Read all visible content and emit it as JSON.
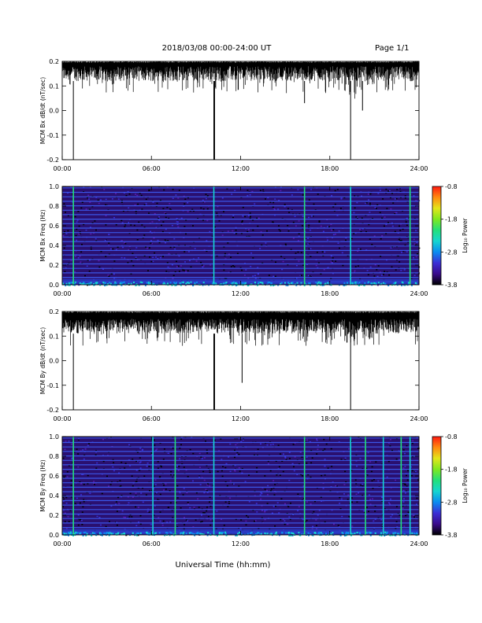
{
  "header": {
    "title": "2018/03/08  00:00-24:00 UT",
    "page": "Page 1/1"
  },
  "x_axis": {
    "title": "Universal Time (hh:mm)",
    "ticks": [
      "00:00",
      "06:00",
      "12:00",
      "18:00",
      "24:00"
    ]
  },
  "colors": {
    "colormap": [
      "#000000",
      "#3a0a8c",
      "#3b2fd6",
      "#0b8cf0",
      "#15d6d0",
      "#23e07a",
      "#7fe81f",
      "#e3e61a",
      "#ff8a10",
      "#ff1a10"
    ]
  },
  "chart_data": [
    {
      "type": "line",
      "panel": "bx-timeseries",
      "ylabel": "MCM Bx dB/dt (nT/sec)",
      "xlim": [
        0,
        24
      ],
      "ylim": [
        -0.2,
        0.2
      ],
      "yticks": [
        "-0.2",
        "-0.1",
        "0.0",
        "0.1",
        "0.2"
      ],
      "baseline_top": 0.2,
      "typical_low": 0.12,
      "spikes": [
        {
          "x": 0.75,
          "y": -0.2
        },
        {
          "x": 10.2,
          "y": -0.2
        },
        {
          "x": 10.25,
          "y": -0.2
        },
        {
          "x": 16.3,
          "y": 0.03
        },
        {
          "x": 19.4,
          "y": -0.2
        },
        {
          "x": 20.2,
          "y": 0.0
        }
      ]
    },
    {
      "type": "heatmap",
      "panel": "bx-spectrogram",
      "ylabel": "MCM Bx Freq (Hz)",
      "xlim": [
        0,
        24
      ],
      "ylim": [
        0,
        1.0
      ],
      "yticks": [
        "0.0",
        "0.2",
        "0.4",
        "0.6",
        "0.8",
        "1.0"
      ],
      "colorbar": {
        "label": "Log₁₀ Power",
        "ticks": [
          "-0.8",
          "-1.8",
          "-2.8",
          "-3.8"
        ],
        "range": [
          -3.8,
          -0.8
        ]
      },
      "vertical_bands": [
        0.75,
        10.2,
        16.3,
        19.4,
        23.4
      ]
    },
    {
      "type": "line",
      "panel": "by-timeseries",
      "ylabel": "MCM By dB/dt (nT/sec)",
      "xlim": [
        0,
        24
      ],
      "ylim": [
        -0.2,
        0.2
      ],
      "yticks": [
        "-0.2",
        "-0.1",
        "0.0",
        "0.1",
        "0.2"
      ],
      "baseline_top": 0.2,
      "typical_low": 0.11,
      "spikes": [
        {
          "x": 0.75,
          "y": -0.2
        },
        {
          "x": 10.2,
          "y": -0.2
        },
        {
          "x": 10.25,
          "y": -0.2
        },
        {
          "x": 12.1,
          "y": -0.09
        },
        {
          "x": 19.4,
          "y": -0.2
        }
      ]
    },
    {
      "type": "heatmap",
      "panel": "by-spectrogram",
      "ylabel": "MCM By Freq (Hz)",
      "xlim": [
        0,
        24
      ],
      "ylim": [
        0,
        1.0
      ],
      "yticks": [
        "0.0",
        "0.2",
        "0.4",
        "0.6",
        "0.8",
        "1.0"
      ],
      "colorbar": {
        "label": "Log₁₀ Power",
        "ticks": [
          "-0.8",
          "-1.8",
          "-2.8",
          "-3.8"
        ],
        "range": [
          -3.8,
          -0.8
        ]
      },
      "vertical_bands": [
        0.75,
        6.1,
        7.6,
        10.2,
        16.3,
        19.4,
        20.4,
        21.6,
        22.8,
        23.4
      ]
    }
  ]
}
